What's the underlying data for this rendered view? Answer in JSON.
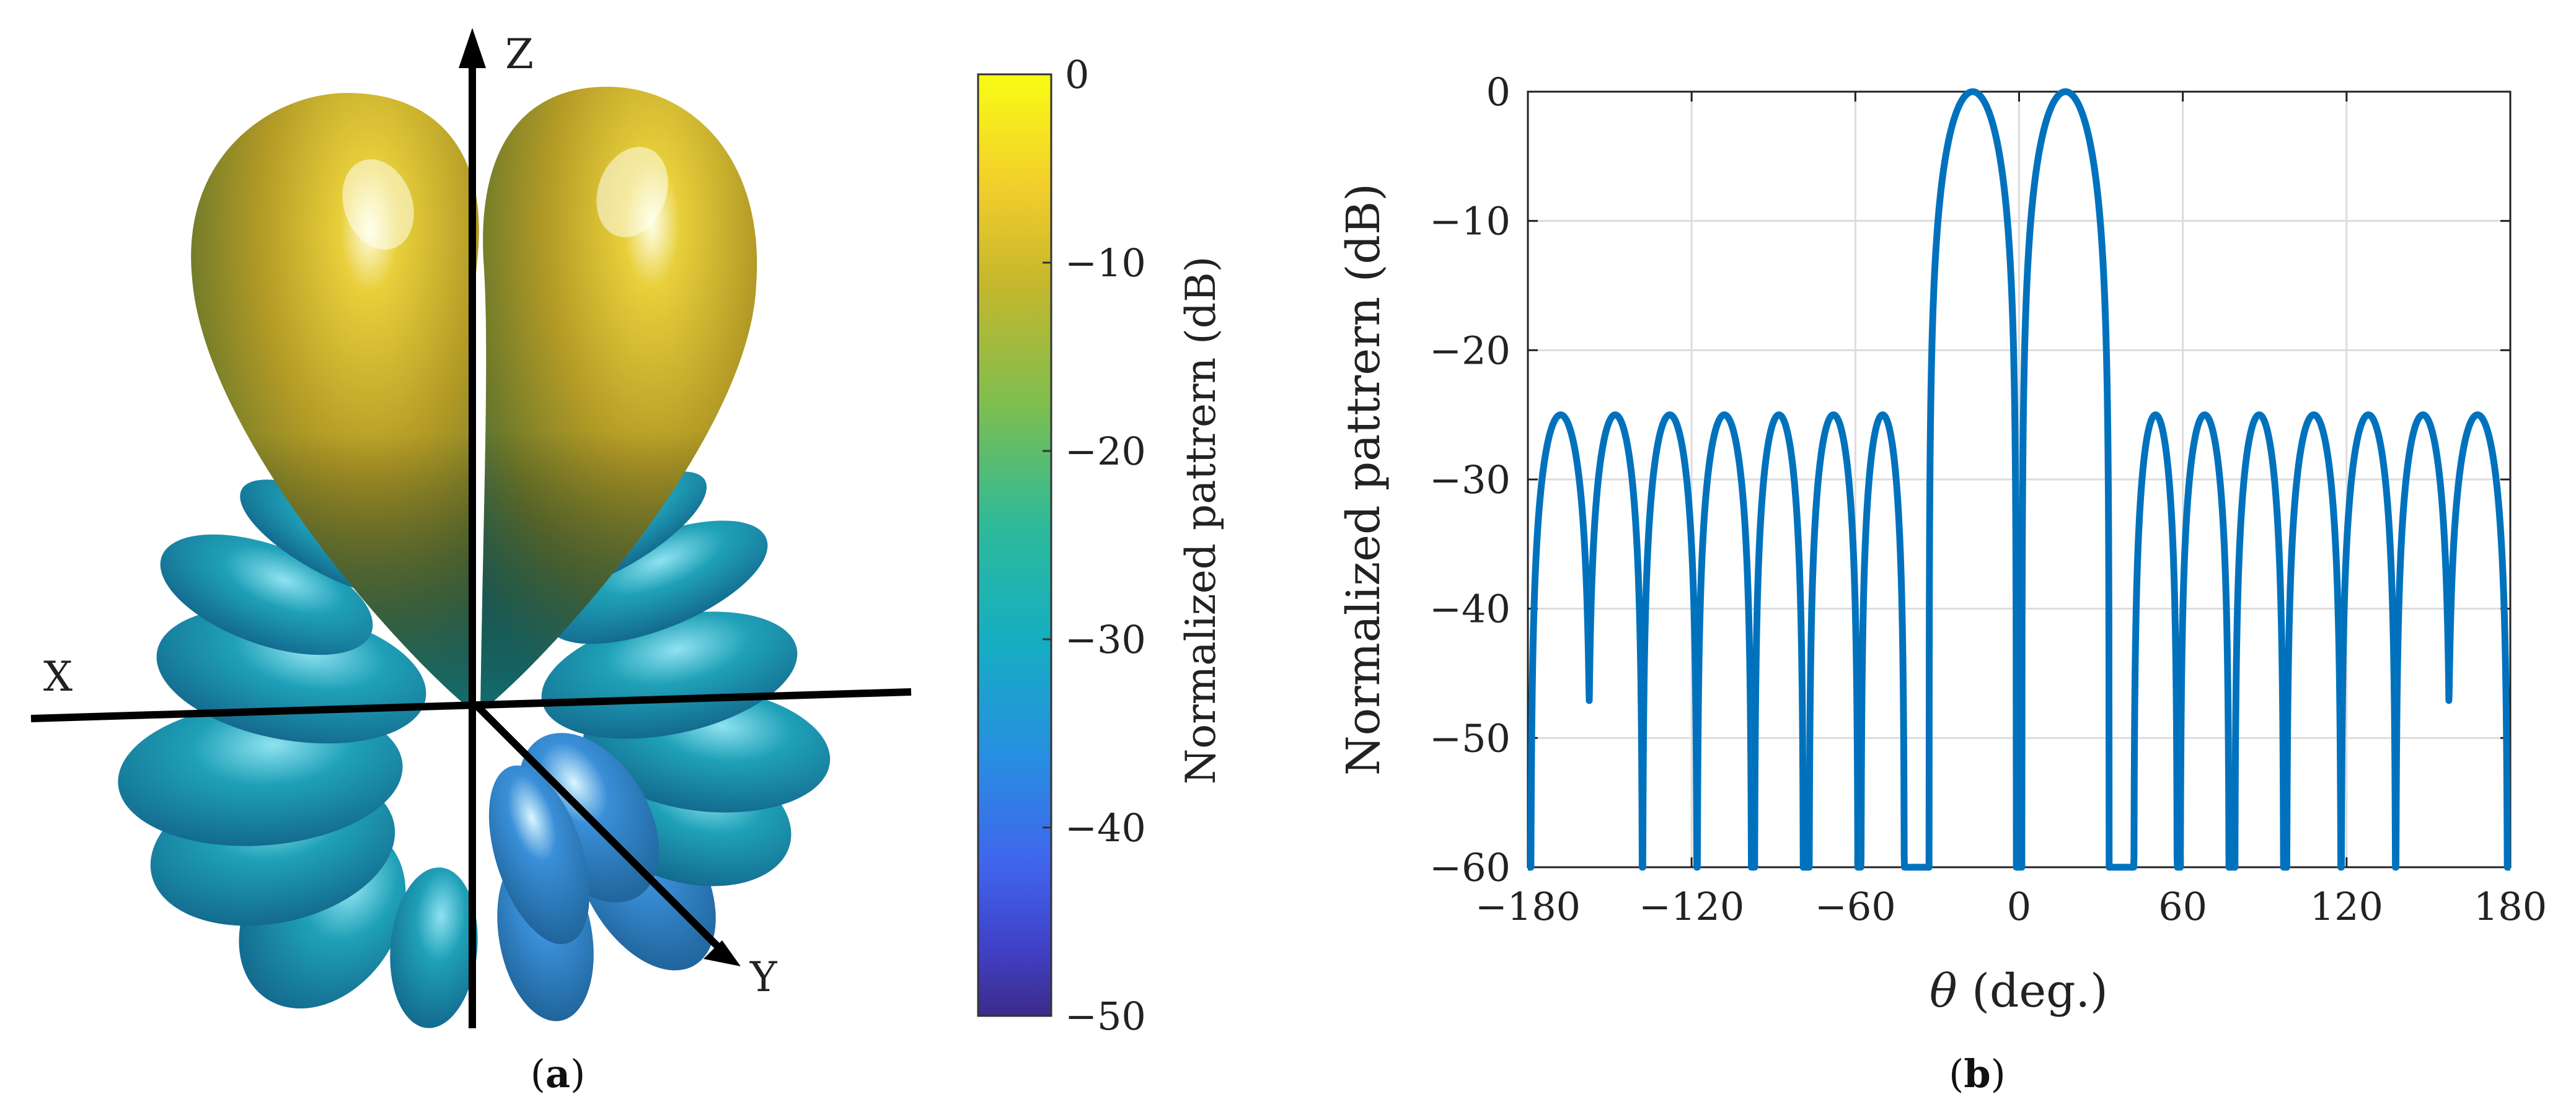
{
  "panel_a": {
    "label_open": "(",
    "label_letter": "a",
    "label_close": ")",
    "axis_labels": {
      "z": "Z",
      "x": "X",
      "y": "Y"
    },
    "colorbar": {
      "label": "Normalized pattrern (dB)",
      "ticks": [
        "0",
        "−10",
        "−20",
        "−30",
        "−40",
        "−50"
      ],
      "colors": [
        "#F9FB15",
        "#E9B634",
        "#A5BD34",
        "#4FC070",
        "#16B3B3",
        "#2A93DD",
        "#3F6DF0",
        "#3B3FC9",
        "#3E2E8F"
      ]
    },
    "lobe_colors": {
      "main": "#C9B12A",
      "side": "#1A8FA8",
      "shadow": "#2F5FB8"
    }
  },
  "panel_b": {
    "label_open": "(",
    "label_letter": "b",
    "label_close": ")",
    "line_color": "#0072BD"
  },
  "chart_data": {
    "type": "line",
    "title": "",
    "xlabel_symbol": "θ",
    "xlabel_rest": " (deg.)",
    "ylabel": "Normalized pattrern  (dB)",
    "xlim": [
      -180,
      180
    ],
    "ylim": [
      -60,
      0
    ],
    "xticks": [
      -180,
      -120,
      -60,
      0,
      60,
      120,
      180
    ],
    "xtick_labels": [
      "−180",
      "−120",
      "−60",
      "0",
      "60",
      "120",
      "180"
    ],
    "yticks": [
      0,
      -10,
      -20,
      -30,
      -40,
      -50,
      -60
    ],
    "ytick_labels": [
      "0",
      "−10",
      "−20",
      "−30",
      "−40",
      "−50",
      "−60"
    ],
    "grid": true,
    "series": [
      {
        "name": "Normalized pattern",
        "peaks": [
          {
            "center": -17,
            "half_width": 16,
            "level": 0
          },
          {
            "center": 17,
            "half_width": 16,
            "level": 0
          },
          {
            "center": -168,
            "half_width": 11,
            "level": -25
          },
          {
            "center": -148,
            "half_width": 10,
            "level": -25
          },
          {
            "center": -128,
            "half_width": 10,
            "level": -25
          },
          {
            "center": -108,
            "half_width": 10,
            "level": -25
          },
          {
            "center": -88,
            "half_width": 9,
            "level": -25
          },
          {
            "center": -68,
            "half_width": 9,
            "level": -25
          },
          {
            "center": -50,
            "half_width": 8,
            "level": -25
          },
          {
            "center": 50,
            "half_width": 8,
            "level": -25
          },
          {
            "center": 68,
            "half_width": 9,
            "level": -25
          },
          {
            "center": 88,
            "half_width": 9,
            "level": -25
          },
          {
            "center": 108,
            "half_width": 10,
            "level": -25
          },
          {
            "center": 128,
            "half_width": 10,
            "level": -25
          },
          {
            "center": 148,
            "half_width": 10,
            "level": -25
          },
          {
            "center": 168,
            "half_width": 11,
            "level": -25
          }
        ]
      }
    ]
  }
}
